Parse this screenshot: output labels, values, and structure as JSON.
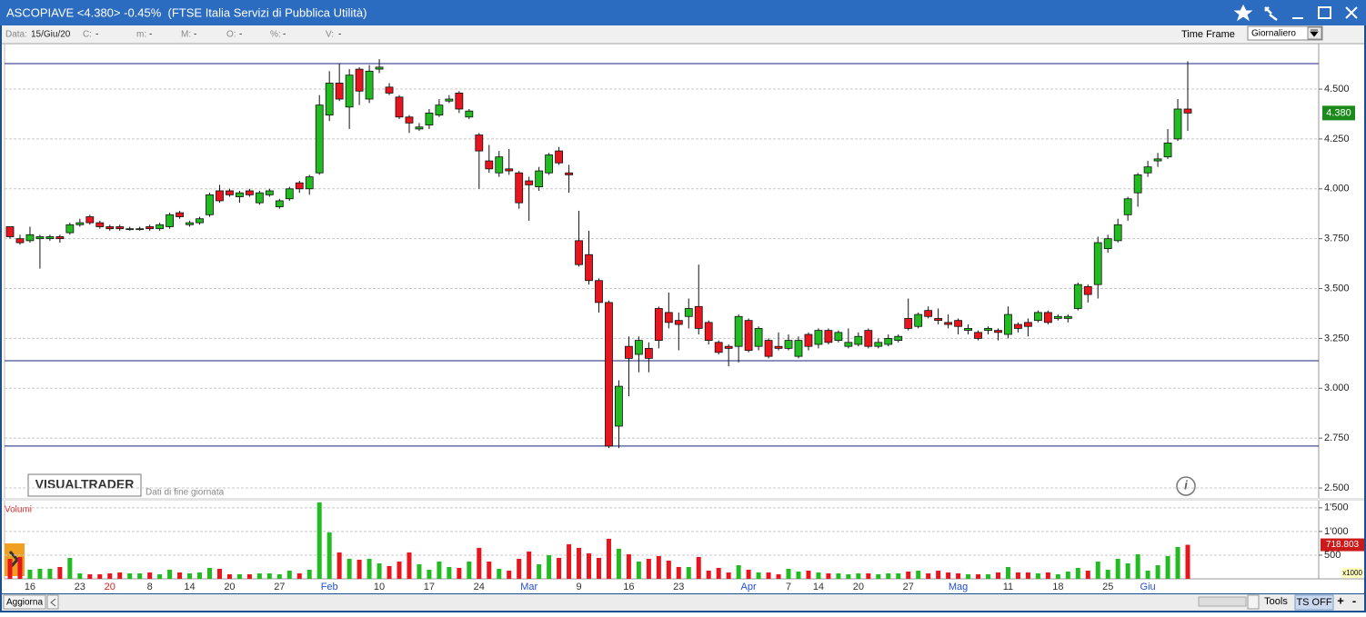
{
  "window": {
    "title": "ASCOPIAVE <4.380> -0.45%  (FTSE Italia Servizi di Pubblica Utilità)"
  },
  "toolbar": {
    "fields": [
      {
        "label": "Data:",
        "value": "15/Giu/20"
      },
      {
        "label": "C:",
        "value": "-"
      },
      {
        "label": "m:",
        "value": "-"
      },
      {
        "label": "M:",
        "value": "-"
      },
      {
        "label": "O:",
        "value": "-"
      },
      {
        "label": "%:",
        "value": "-"
      },
      {
        "label": "V:",
        "value": "-"
      }
    ],
    "time_frame_label": "Time Frame",
    "time_frame": "Giornaliero"
  },
  "branding": {
    "logo": "VISUALTRADER",
    "note": "Dati di fine giornata"
  },
  "footer": {
    "refresh": "Aggiorna",
    "tools": "Tools",
    "ts": "TS OFF",
    "zoom_in": "+",
    "zoom_out": "-"
  },
  "chart_data": {
    "type": "candlestick",
    "up_color": "#22bb22",
    "down_color": "#e8141e",
    "level_color": "#1a237e",
    "categories": [
      null,
      null,
      "16",
      null,
      null,
      null,
      null,
      "23",
      null,
      null,
      "20",
      null,
      null,
      null,
      "8",
      null,
      null,
      null,
      "14",
      null,
      null,
      null,
      "20",
      null,
      null,
      null,
      null,
      "27",
      null,
      null,
      null,
      null,
      "Feb",
      null,
      null,
      null,
      null,
      "10",
      null,
      null,
      null,
      null,
      "17",
      null,
      null,
      null,
      null,
      "24",
      null,
      null,
      null,
      null,
      "Mar",
      null,
      null,
      null,
      null,
      "9",
      null,
      null,
      null,
      null,
      "16",
      null,
      null,
      null,
      null,
      "23",
      null,
      null,
      null,
      null,
      null,
      null,
      "Apr",
      null,
      null,
      null,
      "7",
      null,
      null,
      "14",
      null,
      null,
      null,
      "20",
      null,
      null,
      null,
      null,
      "27",
      null,
      null,
      null,
      null,
      "Mag",
      null,
      null,
      null,
      null,
      "11",
      null,
      null,
      null,
      null,
      "18",
      null,
      null,
      null,
      null,
      "25",
      null,
      null,
      null,
      "Giu",
      null,
      null,
      null,
      null
    ],
    "category_colors": [
      null,
      null,
      "#333333",
      null,
      null,
      null,
      null,
      "#333333",
      null,
      null,
      "#e02020",
      null,
      null,
      null,
      "#333333",
      null,
      null,
      null,
      "#333333",
      null,
      null,
      null,
      "#333333",
      null,
      null,
      null,
      null,
      "#333333",
      null,
      null,
      null,
      null,
      "#2050d8",
      null,
      null,
      null,
      null,
      "#333333",
      null,
      null,
      null,
      null,
      "#333333",
      null,
      null,
      null,
      null,
      "#333333",
      null,
      null,
      null,
      null,
      "#2050d8",
      null,
      null,
      null,
      null,
      "#333333",
      null,
      null,
      null,
      null,
      "#333333",
      null,
      null,
      null,
      null,
      "#333333",
      null,
      null,
      null,
      null,
      null,
      null,
      "#2050d8",
      null,
      null,
      null,
      "#333333",
      null,
      null,
      "#333333",
      null,
      null,
      null,
      "#333333",
      null,
      null,
      null,
      null,
      "#333333",
      null,
      null,
      null,
      null,
      "#2050d8",
      null,
      null,
      null,
      null,
      "#333333",
      null,
      null,
      null,
      null,
      "#333333",
      null,
      null,
      null,
      null,
      "#333333",
      null,
      null,
      null,
      "#2050d8",
      null,
      null,
      null,
      null
    ],
    "open": [
      3.81,
      3.75,
      3.74,
      3.75,
      3.75,
      3.76,
      3.78,
      3.82,
      3.86,
      3.83,
      3.81,
      3.81,
      3.8,
      3.8,
      3.81,
      3.8,
      3.81,
      3.88,
      3.82,
      3.83,
      3.87,
      3.99,
      3.99,
      3.96,
      3.99,
      3.93,
      3.97,
      3.91,
      3.95,
      4.03,
      4.0,
      4.08,
      4.37,
      4.53,
      4.41,
      4.6,
      4.45,
      4.6,
      4.51,
      4.46,
      4.36,
      4.3,
      4.32,
      4.37,
      4.44,
      4.48,
      4.36,
      4.27,
      4.14,
      4.08,
      4.1,
      4.08,
      4.04,
      4.01,
      4.08,
      4.19,
      4.08,
      3.74,
      3.67,
      3.54,
      3.43,
      2.81,
      3.21,
      3.17,
      3.2,
      3.4,
      3.38,
      3.34,
      3.36,
      3.41,
      3.33,
      3.23,
      3.21,
      3.21,
      3.34,
      3.21,
      3.24,
      3.21,
      3.2,
      3.16,
      3.27,
      3.22,
      3.29,
      3.24,
      3.21,
      3.22,
      3.29,
      3.21,
      3.22,
      3.24,
      3.35,
      3.31,
      3.39,
      3.35,
      3.33,
      3.34,
      3.29,
      3.28,
      3.29,
      3.29,
      3.27,
      3.32,
      3.33,
      3.34,
      3.38,
      3.35,
      3.35,
      3.4,
      3.51,
      3.52,
      3.7,
      3.74,
      3.87,
      3.98,
      4.08,
      4.14,
      4.16,
      4.25,
      4.4
    ],
    "high": [
      3.81,
      3.77,
      3.81,
      3.77,
      3.77,
      3.77,
      3.83,
      3.85,
      3.87,
      3.84,
      3.82,
      3.82,
      3.81,
      3.81,
      3.82,
      3.83,
      3.88,
      3.89,
      3.84,
      3.86,
      3.98,
      4.02,
      4.0,
      3.99,
      4.0,
      3.99,
      4.0,
      3.95,
      4.01,
      4.04,
      4.07,
      4.47,
      4.59,
      4.63,
      4.6,
      4.61,
      4.62,
      4.65,
      4.53,
      4.47,
      4.37,
      4.33,
      4.4,
      4.45,
      4.47,
      4.49,
      4.4,
      4.28,
      4.22,
      4.19,
      4.2,
      4.09,
      4.06,
      4.11,
      4.18,
      4.21,
      4.12,
      3.89,
      3.79,
      3.55,
      3.44,
      3.04,
      3.26,
      3.26,
      3.23,
      3.41,
      3.48,
      3.38,
      3.45,
      3.62,
      3.34,
      3.24,
      3.22,
      3.37,
      3.35,
      3.31,
      3.25,
      3.28,
      3.27,
      3.26,
      3.28,
      3.3,
      3.3,
      3.29,
      3.3,
      3.28,
      3.3,
      3.25,
      3.27,
      3.27,
      3.45,
      3.38,
      3.41,
      3.4,
      3.37,
      3.35,
      3.32,
      3.29,
      3.31,
      3.3,
      3.41,
      3.33,
      3.35,
      3.39,
      3.39,
      3.37,
      3.37,
      3.53,
      3.52,
      3.76,
      3.77,
      3.85,
      3.96,
      4.08,
      4.14,
      4.18,
      4.3,
      4.45,
      4.64
    ],
    "low": [
      3.75,
      3.72,
      3.73,
      3.6,
      3.74,
      3.73,
      3.77,
      3.81,
      3.82,
      3.8,
      3.79,
      3.79,
      3.79,
      3.79,
      3.79,
      3.79,
      3.8,
      3.85,
      3.81,
      3.82,
      3.86,
      3.93,
      3.96,
      3.93,
      3.96,
      3.92,
      3.96,
      3.9,
      3.94,
      3.98,
      3.97,
      4.07,
      4.34,
      4.44,
      4.3,
      4.42,
      4.43,
      4.58,
      4.47,
      4.35,
      4.28,
      4.29,
      4.3,
      4.36,
      4.43,
      4.38,
      4.35,
      4.0,
      4.08,
      4.06,
      4.07,
      3.9,
      3.84,
      3.99,
      4.07,
      4.12,
      3.98,
      3.61,
      3.52,
      3.38,
      2.7,
      2.7,
      2.96,
      3.08,
      3.08,
      3.2,
      3.3,
      3.19,
      3.3,
      3.27,
      3.22,
      3.17,
      3.11,
      3.13,
      3.18,
      3.19,
      3.15,
      3.19,
      3.19,
      3.15,
      3.19,
      3.2,
      3.22,
      3.23,
      3.2,
      3.21,
      3.2,
      3.2,
      3.21,
      3.23,
      3.29,
      3.3,
      3.35,
      3.32,
      3.3,
      3.27,
      3.27,
      3.24,
      3.27,
      3.24,
      3.25,
      3.28,
      3.26,
      3.33,
      3.32,
      3.34,
      3.33,
      3.39,
      3.43,
      3.45,
      3.68,
      3.73,
      3.84,
      3.91,
      4.06,
      4.11,
      4.15,
      4.24,
      4.29
    ],
    "close": [
      3.76,
      3.73,
      3.77,
      3.76,
      3.76,
      3.75,
      3.82,
      3.83,
      3.83,
      3.81,
      3.8,
      3.8,
      3.8,
      3.8,
      3.8,
      3.82,
      3.87,
      3.86,
      3.83,
      3.85,
      3.97,
      3.94,
      3.97,
      3.98,
      3.97,
      3.98,
      3.99,
      3.94,
      4.0,
      4.0,
      4.06,
      4.42,
      4.53,
      4.45,
      4.57,
      4.49,
      4.59,
      4.61,
      4.48,
      4.36,
      4.33,
      4.31,
      4.38,
      4.42,
      4.45,
      4.4,
      4.39,
      4.19,
      4.1,
      4.16,
      4.09,
      3.93,
      4.02,
      4.09,
      4.17,
      4.13,
      4.07,
      3.62,
      3.54,
      3.43,
      2.71,
      3.01,
      3.15,
      3.24,
      3.15,
      3.24,
      3.33,
      3.32,
      3.4,
      3.3,
      3.24,
      3.18,
      3.2,
      3.36,
      3.19,
      3.3,
      3.16,
      3.2,
      3.24,
      3.24,
      3.21,
      3.29,
      3.23,
      3.28,
      3.23,
      3.26,
      3.21,
      3.23,
      3.25,
      3.26,
      3.3,
      3.37,
      3.36,
      3.34,
      3.32,
      3.31,
      3.3,
      3.25,
      3.3,
      3.28,
      3.37,
      3.3,
      3.31,
      3.38,
      3.33,
      3.36,
      3.36,
      3.52,
      3.47,
      3.73,
      3.75,
      3.82,
      3.95,
      4.07,
      4.11,
      4.15,
      4.23,
      4.4,
      4.38
    ],
    "close_label": "4.380",
    "volume_title": "Volumi",
    "volume_unit": "x1000",
    "volume": [
      423,
      462,
      192,
      212,
      212,
      250,
      442,
      115,
      96,
      96,
      115,
      135,
      115,
      115,
      135,
      96,
      192,
      135,
      115,
      135,
      231,
      212,
      96,
      96,
      96,
      115,
      115,
      96,
      173,
      115,
      192,
      1615,
      981,
      558,
      423,
      404,
      423,
      327,
      270,
      365,
      558,
      308,
      192,
      365,
      250,
      231,
      365,
      654,
      365,
      212,
      173,
      423,
      577,
      308,
      500,
      442,
      731,
      654,
      538,
      442,
      846,
      635,
      519,
      365,
      423,
      481,
      385,
      250,
      250,
      462,
      173,
      231,
      135,
      288,
      192,
      135,
      135,
      96,
      212,
      154,
      173,
      135,
      115,
      115,
      96,
      115,
      115,
      96,
      115,
      115,
      154,
      173,
      115,
      173,
      135,
      115,
      96,
      96,
      96,
      135,
      250,
      135,
      135,
      115,
      135,
      96,
      154,
      231,
      173,
      365,
      192,
      423,
      327,
      519,
      173,
      288,
      481,
      673,
      718.803
    ],
    "levels": [
      4.628,
      3.138,
      2.71
    ],
    "ylim": [
      2.45,
      4.728
    ],
    "yticks": [
      {
        "value": 2.5,
        "label": "2.500"
      },
      {
        "value": 2.75,
        "label": "2.750"
      },
      {
        "value": 3,
        "label": "3.000"
      },
      {
        "value": 3.25,
        "label": "3.250"
      },
      {
        "value": 3.5,
        "label": "3.500"
      },
      {
        "value": 3.75,
        "label": "3.750"
      },
      {
        "value": 4,
        "label": "4.000"
      },
      {
        "value": 4.25,
        "label": "4.250"
      },
      {
        "value": 4.5,
        "label": "4.500"
      }
    ],
    "y2lim": [
      0,
      1650
    ],
    "y2ticks": [
      500,
      {
        "value": 1000,
        "label": "1'000"
      },
      {
        "value": 1500,
        "label": "1'500"
      }
    ],
    "grid": true
  }
}
